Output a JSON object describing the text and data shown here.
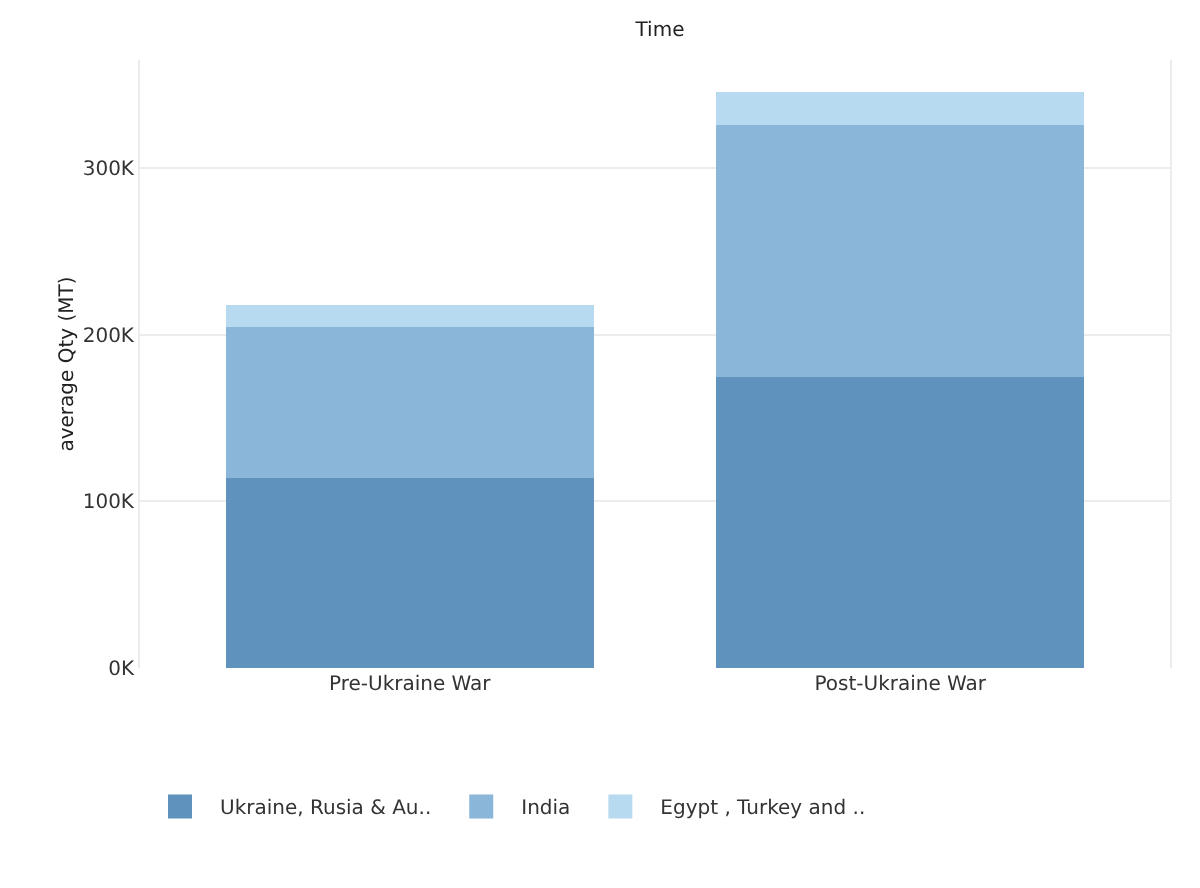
{
  "chart_data": {
    "type": "bar",
    "title": "Time",
    "ylabel": "average Qty (MT)",
    "categories": [
      "Pre-Ukraine War",
      "Post-Ukraine War"
    ],
    "stacked": true,
    "series": [
      {
        "name": "Ukraine, Rusia & Au..",
        "color": "#5f93bd",
        "values": [
          114000,
          175000
        ]
      },
      {
        "name": "India",
        "color": "#8ab6d9",
        "values": [
          91000,
          151000
        ]
      },
      {
        "name": "Egypt , Turkey and ..",
        "color": "#b8daf0",
        "values": [
          13000,
          20000
        ]
      }
    ],
    "ylim": [
      0,
      365000
    ],
    "yticks": [
      {
        "value": 0,
        "label": "0K"
      },
      {
        "value": 100000,
        "label": "100K"
      },
      {
        "value": 200000,
        "label": "200K"
      },
      {
        "value": 300000,
        "label": "300K"
      }
    ],
    "grid": "y",
    "legend": "bottom"
  }
}
